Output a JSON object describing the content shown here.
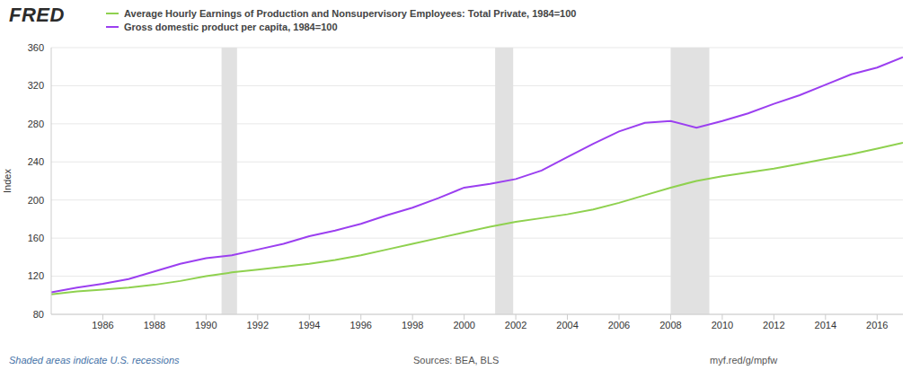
{
  "chart_data": {
    "type": "line",
    "logo": "FRED",
    "y_label": "Index",
    "note": "Shaded areas indicate U.S. recessions",
    "source": "Sources: BEA, BLS",
    "url": "myf.red/g/mpfw",
    "x": [
      1984,
      1985,
      1986,
      1987,
      1988,
      1989,
      1990,
      1991,
      1992,
      1993,
      1994,
      1995,
      1996,
      1997,
      1998,
      1999,
      2000,
      2001,
      2002,
      2003,
      2004,
      2005,
      2006,
      2007,
      2008,
      2009,
      2010,
      2011,
      2012,
      2013,
      2014,
      2015,
      2016,
      2017
    ],
    "series": [
      {
        "name": "Average Hourly Earnings of Production and Nonsupervisory Employees: Total Private, 1984=100",
        "color": "#8fd14f",
        "values": [
          101,
          104,
          106,
          108,
          111,
          115,
          120,
          124,
          127,
          130,
          133,
          137,
          142,
          148,
          154,
          160,
          166,
          172,
          177,
          181,
          185,
          190,
          197,
          205,
          213,
          220,
          225,
          229,
          233,
          238,
          243,
          248,
          254,
          260
        ]
      },
      {
        "name": "Gross domestic product per capita, 1984=100",
        "color": "#9b3ff0",
        "values": [
          103,
          108,
          112,
          117,
          125,
          133,
          139,
          142,
          148,
          154,
          162,
          168,
          175,
          184,
          192,
          202,
          213,
          217,
          222,
          231,
          245,
          259,
          272,
          281,
          283,
          276,
          283,
          291,
          301,
          310,
          321,
          332,
          339,
          350
        ]
      }
    ],
    "recessions": [
      [
        1990.6,
        1991.2
      ],
      [
        2001.2,
        2001.9
      ],
      [
        2008.0,
        2009.5
      ]
    ],
    "xlim": [
      1984,
      2017
    ],
    "xticks": [
      1986,
      1988,
      1990,
      1992,
      1994,
      1996,
      1998,
      2000,
      2002,
      2004,
      2006,
      2008,
      2010,
      2012,
      2014,
      2016
    ],
    "ylim": [
      80,
      360
    ],
    "yticks": [
      80,
      120,
      160,
      200,
      240,
      280,
      320,
      360
    ],
    "grid": true
  }
}
